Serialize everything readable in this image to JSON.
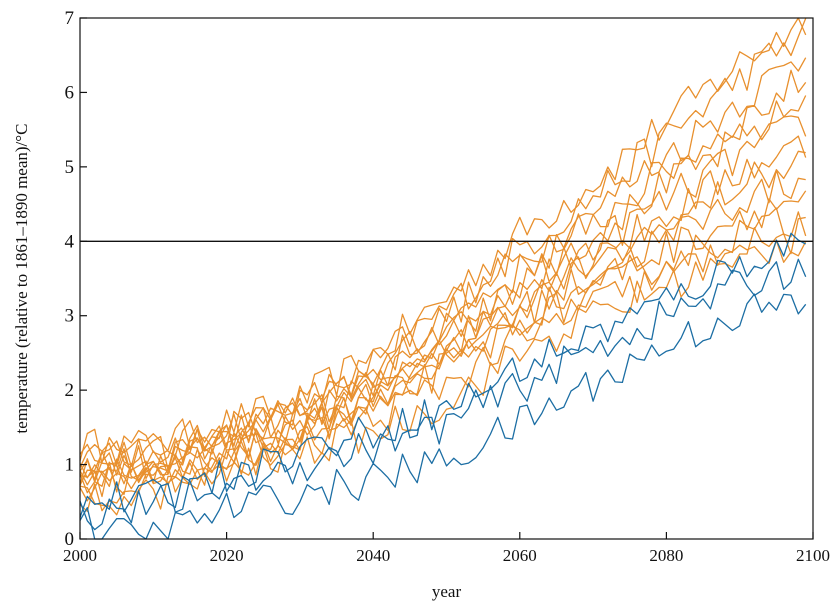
{
  "chart_data": {
    "type": "line",
    "title": "",
    "xlabel": "year",
    "ylabel": "temperature (relative to 1861–1890 mean)/°C",
    "xlim": [
      2000,
      2100
    ],
    "ylim": [
      0,
      7
    ],
    "xticks": [
      2000,
      2020,
      2040,
      2060,
      2080,
      2100
    ],
    "yticks": [
      0,
      1,
      2,
      3,
      4,
      5,
      6,
      7
    ],
    "grid": false,
    "legend": "none",
    "reference_line": {
      "y": 4,
      "color": "#111111"
    },
    "colors": {
      "orange": "#E8902E",
      "blue": "#1C6EA4"
    },
    "series": [
      {
        "color": "orange",
        "points": [
          [
            2000,
            1.25
          ],
          [
            2010,
            1.25
          ],
          [
            2020,
            1.55
          ],
          [
            2030,
            1.85
          ],
          [
            2040,
            2.45
          ],
          [
            2050,
            3.25
          ],
          [
            2060,
            4.1
          ],
          [
            2070,
            4.8
          ],
          [
            2080,
            5.6
          ],
          [
            2090,
            6.4
          ],
          [
            2099,
            7.0
          ]
        ]
      },
      {
        "color": "orange",
        "points": [
          [
            2000,
            1.2
          ],
          [
            2010,
            1.2
          ],
          [
            2020,
            1.5
          ],
          [
            2030,
            1.8
          ],
          [
            2040,
            2.35
          ],
          [
            2050,
            3.1
          ],
          [
            2060,
            3.9
          ],
          [
            2070,
            4.6
          ],
          [
            2080,
            5.4
          ],
          [
            2090,
            6.2
          ],
          [
            2099,
            6.8
          ]
        ]
      },
      {
        "color": "orange",
        "points": [
          [
            2000,
            1.15
          ],
          [
            2010,
            1.15
          ],
          [
            2020,
            1.45
          ],
          [
            2030,
            1.75
          ],
          [
            2040,
            2.25
          ],
          [
            2050,
            3.0
          ],
          [
            2060,
            3.75
          ],
          [
            2070,
            4.4
          ],
          [
            2080,
            5.15
          ],
          [
            2090,
            5.9
          ],
          [
            2099,
            6.5
          ]
        ]
      },
      {
        "color": "orange",
        "points": [
          [
            2000,
            1.05
          ],
          [
            2010,
            1.1
          ],
          [
            2020,
            1.4
          ],
          [
            2030,
            1.7
          ],
          [
            2040,
            2.2
          ],
          [
            2050,
            2.9
          ],
          [
            2060,
            3.6
          ],
          [
            2070,
            4.25
          ],
          [
            2080,
            4.95
          ],
          [
            2090,
            5.6
          ],
          [
            2099,
            6.2
          ]
        ]
      },
      {
        "color": "orange",
        "points": [
          [
            2000,
            1.0
          ],
          [
            2010,
            1.05
          ],
          [
            2020,
            1.35
          ],
          [
            2030,
            1.65
          ],
          [
            2040,
            2.1
          ],
          [
            2050,
            2.8
          ],
          [
            2060,
            3.45
          ],
          [
            2070,
            4.1
          ],
          [
            2080,
            4.75
          ],
          [
            2090,
            5.35
          ],
          [
            2099,
            5.9
          ]
        ]
      },
      {
        "color": "orange",
        "points": [
          [
            2000,
            0.95
          ],
          [
            2010,
            1.0
          ],
          [
            2020,
            1.3
          ],
          [
            2030,
            1.6
          ],
          [
            2040,
            2.05
          ],
          [
            2050,
            2.7
          ],
          [
            2060,
            3.35
          ],
          [
            2070,
            3.95
          ],
          [
            2080,
            4.55
          ],
          [
            2090,
            5.15
          ],
          [
            2099,
            5.6
          ]
        ]
      },
      {
        "color": "orange",
        "points": [
          [
            2000,
            0.9
          ],
          [
            2010,
            0.95
          ],
          [
            2020,
            1.25
          ],
          [
            2030,
            1.55
          ],
          [
            2040,
            2.0
          ],
          [
            2050,
            2.6
          ],
          [
            2060,
            3.25
          ],
          [
            2070,
            3.8
          ],
          [
            2080,
            4.35
          ],
          [
            2090,
            4.95
          ],
          [
            2099,
            5.3
          ]
        ]
      },
      {
        "color": "orange",
        "points": [
          [
            2000,
            0.85
          ],
          [
            2010,
            0.9
          ],
          [
            2020,
            1.2
          ],
          [
            2030,
            1.5
          ],
          [
            2040,
            1.95
          ],
          [
            2050,
            2.5
          ],
          [
            2060,
            3.15
          ],
          [
            2070,
            3.7
          ],
          [
            2080,
            4.2
          ],
          [
            2090,
            4.75
          ],
          [
            2099,
            5.1
          ]
        ]
      },
      {
        "color": "orange",
        "points": [
          [
            2000,
            0.8
          ],
          [
            2010,
            0.85
          ],
          [
            2020,
            1.15
          ],
          [
            2030,
            1.45
          ],
          [
            2040,
            1.9
          ],
          [
            2050,
            2.45
          ],
          [
            2060,
            3.05
          ],
          [
            2070,
            3.55
          ],
          [
            2080,
            4.05
          ],
          [
            2090,
            4.55
          ],
          [
            2099,
            4.85
          ]
        ]
      },
      {
        "color": "orange",
        "points": [
          [
            2000,
            0.75
          ],
          [
            2010,
            0.8
          ],
          [
            2020,
            1.1
          ],
          [
            2030,
            1.4
          ],
          [
            2040,
            1.85
          ],
          [
            2050,
            2.4
          ],
          [
            2060,
            2.95
          ],
          [
            2070,
            3.45
          ],
          [
            2080,
            3.9
          ],
          [
            2090,
            4.35
          ],
          [
            2099,
            4.6
          ]
        ]
      },
      {
        "color": "orange",
        "points": [
          [
            2000,
            0.7
          ],
          [
            2010,
            0.75
          ],
          [
            2020,
            1.05
          ],
          [
            2030,
            1.35
          ],
          [
            2040,
            1.8
          ],
          [
            2050,
            2.3
          ],
          [
            2060,
            2.85
          ],
          [
            2070,
            3.3
          ],
          [
            2080,
            3.75
          ],
          [
            2090,
            4.1
          ],
          [
            2099,
            4.3
          ]
        ]
      },
      {
        "color": "orange",
        "points": [
          [
            2000,
            0.6
          ],
          [
            2010,
            0.7
          ],
          [
            2020,
            1.0
          ],
          [
            2030,
            1.25
          ],
          [
            2040,
            1.6
          ],
          [
            2050,
            2.1
          ],
          [
            2060,
            2.7
          ],
          [
            2070,
            3.15
          ],
          [
            2080,
            3.55
          ],
          [
            2090,
            3.9
          ],
          [
            2099,
            4.1
          ]
        ]
      },
      {
        "color": "orange",
        "points": [
          [
            2000,
            0.5
          ],
          [
            2010,
            0.6
          ],
          [
            2020,
            0.9
          ],
          [
            2030,
            1.15
          ],
          [
            2040,
            1.45
          ],
          [
            2050,
            1.85
          ],
          [
            2060,
            2.5
          ],
          [
            2070,
            3.0
          ],
          [
            2080,
            3.4
          ],
          [
            2090,
            3.8
          ],
          [
            2099,
            4.0
          ]
        ]
      },
      {
        "color": "blue",
        "points": [
          [
            2000,
            0.5
          ],
          [
            2010,
            0.55
          ],
          [
            2020,
            0.85
          ],
          [
            2030,
            1.2
          ],
          [
            2040,
            1.45
          ],
          [
            2050,
            1.75
          ],
          [
            2060,
            2.3
          ],
          [
            2070,
            2.75
          ],
          [
            2080,
            3.2
          ],
          [
            2090,
            3.7
          ],
          [
            2099,
            4.05
          ]
        ]
      },
      {
        "color": "blue",
        "points": [
          [
            2000,
            0.35
          ],
          [
            2010,
            0.45
          ],
          [
            2020,
            0.75
          ],
          [
            2030,
            1.0
          ],
          [
            2040,
            1.25
          ],
          [
            2050,
            1.55
          ],
          [
            2060,
            2.05
          ],
          [
            2070,
            2.55
          ],
          [
            2080,
            3.0
          ],
          [
            2090,
            3.4
          ],
          [
            2099,
            3.7
          ]
        ]
      },
      {
        "color": "blue",
        "points": [
          [
            2000,
            0.25
          ],
          [
            2005,
            0.05
          ],
          [
            2010,
            0.05
          ],
          [
            2020,
            0.4
          ],
          [
            2030,
            0.6
          ],
          [
            2040,
            0.8
          ],
          [
            2050,
            1.05
          ],
          [
            2060,
            1.55
          ],
          [
            2070,
            2.1
          ],
          [
            2080,
            2.6
          ],
          [
            2090,
            3.05
          ],
          [
            2099,
            3.15
          ]
        ]
      }
    ]
  }
}
